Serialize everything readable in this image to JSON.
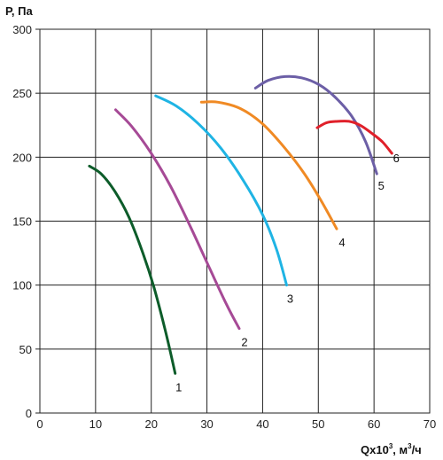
{
  "chart_data": {
    "type": "line",
    "ylabel": "Р, Па",
    "xlabel": "Qx10",
    "xlabel_sup": "3",
    "xlabel_unit": ", м",
    "xlabel_unit_sup": "3",
    "xlabel_unit_tail": "/ч",
    "xlim": [
      0,
      70
    ],
    "ylim": [
      0,
      300
    ],
    "xticks": [
      0,
      10,
      20,
      30,
      40,
      50,
      60,
      70
    ],
    "yticks": [
      0,
      50,
      100,
      150,
      200,
      250,
      300
    ],
    "grid": true,
    "series": [
      {
        "name": "1",
        "color": "#0d5c2a",
        "x": [
          8.9,
          11.0,
          13.5,
          16.0,
          18.5,
          20.5,
          22.5,
          24.3
        ],
        "y": [
          193,
          187,
          173,
          153,
          125,
          98,
          65,
          31
        ]
      },
      {
        "name": "2",
        "color": "#a64a96",
        "x": [
          13.6,
          16.5,
          20.0,
          23.5,
          27.0,
          30.5,
          33.5,
          35.8
        ],
        "y": [
          237,
          224,
          203,
          177,
          146,
          113,
          85,
          66
        ]
      },
      {
        "name": "3",
        "color": "#1fb4e4",
        "x": [
          20.8,
          24.5,
          28.5,
          32.5,
          36.5,
          40.0,
          42.5,
          44.3
        ],
        "y": [
          248,
          240,
          226,
          207,
          182,
          155,
          128,
          100
        ]
      },
      {
        "name": "4",
        "color": "#f08a24",
        "x": [
          29.0,
          32.0,
          36.0,
          40.0,
          44.0,
          47.5,
          50.5,
          53.3
        ],
        "y": [
          243,
          243,
          238,
          226,
          207,
          187,
          166,
          144
        ]
      },
      {
        "name": "5",
        "color": "#6c5fa6",
        "x": [
          38.7,
          41.0,
          44.0,
          47.0,
          50.0,
          53.0,
          56.0,
          58.5,
          60.5
        ],
        "y": [
          254,
          260,
          263,
          262,
          257,
          247,
          232,
          212,
          187
        ]
      },
      {
        "name": "6",
        "color": "#e0202a",
        "x": [
          49.8,
          51.5,
          53.5,
          55.5,
          57.5,
          59.5,
          61.5,
          63.2
        ],
        "y": [
          223,
          227,
          228,
          228,
          225,
          219,
          212,
          203
        ]
      }
    ]
  }
}
